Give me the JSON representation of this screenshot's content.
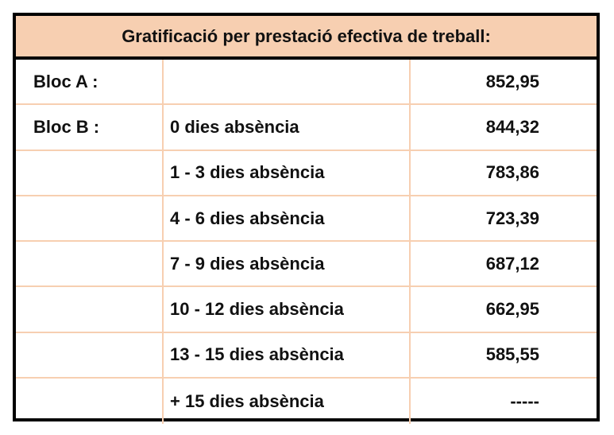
{
  "table": {
    "title": "Gratificació per prestació efectiva de treball:",
    "rows": [
      {
        "block": "Bloc A :",
        "condition": "",
        "amount": "852,95"
      },
      {
        "block": "Bloc B :",
        "condition": "0 dies absència",
        "amount": "844,32"
      },
      {
        "block": "",
        "condition": "1 - 3 dies absència",
        "amount": "783,86"
      },
      {
        "block": "",
        "condition": "4 - 6 dies absència",
        "amount": "723,39"
      },
      {
        "block": "",
        "condition": "7 - 9 dies absència",
        "amount": "687,12"
      },
      {
        "block": "",
        "condition": "10 - 12 dies absència",
        "amount": "662,95"
      },
      {
        "block": "",
        "condition": "13 - 15 dies absència",
        "amount": "585,55"
      },
      {
        "block": "",
        "condition": "+ 15 dies absència",
        "amount": "-----"
      }
    ]
  },
  "colors": {
    "header_background": "#f7cfb1",
    "grid_lines": "#f7cfb1",
    "border": "#000000",
    "text": "#111111"
  }
}
